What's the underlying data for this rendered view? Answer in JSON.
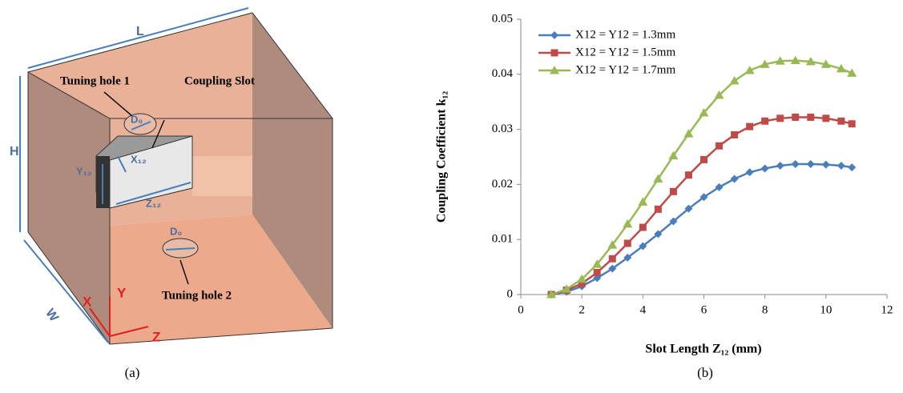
{
  "diagram": {
    "length": "L",
    "height": "H",
    "width": "W",
    "tuning_hole_1": "Tuning hole 1",
    "coupling_slot": "Coupling Slot",
    "d0_top": "D₀",
    "x12": "X₁₂",
    "y12": "Y₁₂",
    "z12": "Z₁₂",
    "d0_bottom": "D₀",
    "tuning_hole_2": "Tuning hole 2",
    "axis_x": "X",
    "axis_y": "Y",
    "axis_z": "Z"
  },
  "chart_data": {
    "type": "line",
    "x_label": "Slot Length Z₁₂ (mm)",
    "y_label": "Coupling Coefficient k₁₂",
    "x": [
      1,
      1.5,
      2,
      2.5,
      3,
      3.5,
      4,
      4.5,
      5,
      5.5,
      6,
      6.5,
      7,
      7.5,
      8,
      8.5,
      9,
      9.5,
      10,
      10.5,
      10.85
    ],
    "series": [
      {
        "name": "X12 = Y12 = 1.3mm",
        "color": "#4a7ebb",
        "marker": "diamond",
        "values": [
          0,
          0.0005,
          0.0015,
          0.003,
          0.0047,
          0.0067,
          0.0088,
          0.011,
          0.0133,
          0.0156,
          0.0177,
          0.0195,
          0.021,
          0.0222,
          0.0229,
          0.0234,
          0.0237,
          0.0237,
          0.0236,
          0.0234,
          0.0231
        ]
      },
      {
        "name": "X12 = Y12 = 1.5mm",
        "color": "#be4b48",
        "marker": "square",
        "values": [
          0,
          0.0008,
          0.002,
          0.004,
          0.0065,
          0.0093,
          0.0122,
          0.0155,
          0.0187,
          0.0217,
          0.0245,
          0.027,
          0.029,
          0.0305,
          0.0315,
          0.032,
          0.0322,
          0.0322,
          0.032,
          0.0315,
          0.031
        ]
      },
      {
        "name": "X12 = Y12 = 1.7mm",
        "color": "#98b954",
        "marker": "triangle",
        "values": [
          0,
          0.001,
          0.0028,
          0.0055,
          0.009,
          0.0128,
          0.0168,
          0.021,
          0.0252,
          0.0292,
          0.033,
          0.0362,
          0.0388,
          0.0407,
          0.0418,
          0.0424,
          0.0425,
          0.0423,
          0.0418,
          0.041,
          0.0402
        ]
      }
    ],
    "xlim": [
      0,
      12
    ],
    "xticks": [
      0,
      2,
      4,
      6,
      8,
      10,
      12
    ],
    "ylim": [
      0,
      0.05
    ],
    "yticks": [
      0,
      0.01,
      0.02,
      0.03,
      0.04,
      0.05
    ],
    "legend": "top-left"
  },
  "captions": [
    "(a)",
    "(b)"
  ]
}
